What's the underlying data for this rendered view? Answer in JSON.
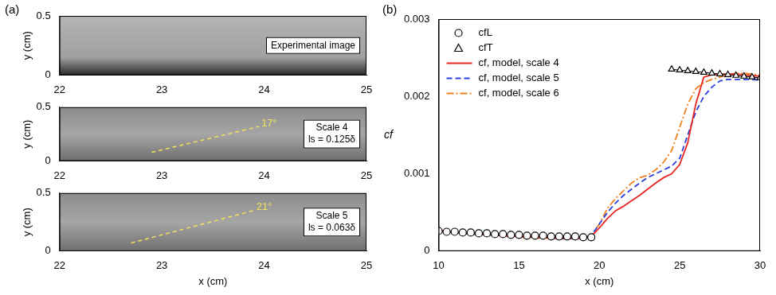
{
  "chart_data": [
    {
      "type": "image",
      "panel_label": "(a)",
      "y_label": "y (cm)",
      "xlim": [
        22,
        25
      ],
      "xticks": [
        22,
        23,
        24,
        25
      ],
      "ylim": [
        0,
        0.5
      ],
      "yticks": [
        0,
        0.5
      ],
      "text_box": [
        "Experimental image"
      ]
    },
    {
      "type": "image",
      "y_label": "y (cm)",
      "xlim": [
        22,
        25
      ],
      "xticks": [
        22,
        23,
        24,
        25
      ],
      "ylim": [
        0,
        0.5
      ],
      "yticks": [
        0,
        0.5
      ],
      "text_box": [
        "Scale 4",
        "ls = 0.125δ"
      ],
      "angle_lines": [
        {
          "x": [
            22.9,
            23.95
          ],
          "y": [
            0.08,
            0.32
          ],
          "label": "17°",
          "color": "#f2e35a"
        }
      ]
    },
    {
      "type": "image",
      "x_label": "x (cm)",
      "y_label": "y (cm)",
      "xlim": [
        22,
        25
      ],
      "xticks": [
        22,
        23,
        24,
        25
      ],
      "ylim": [
        0,
        0.5
      ],
      "yticks": [
        0,
        0.5
      ],
      "text_box": [
        "Scale 5",
        "ls = 0.063δ"
      ],
      "angle_lines": [
        {
          "x": [
            22.7,
            23.9
          ],
          "y": [
            0.07,
            0.35
          ],
          "label": "21°",
          "color": "#f2e35a"
        }
      ]
    },
    {
      "type": "line",
      "panel_label": "(b)",
      "x_label": "x (cm)",
      "y_label": "cf",
      "xlim": [
        10,
        30
      ],
      "xticks": [
        10,
        15,
        20,
        25,
        30
      ],
      "ylim": [
        0,
        0.003
      ],
      "yticks": [
        0,
        0.001,
        0.002,
        0.003
      ],
      "legend": "upper left",
      "series": [
        {
          "name": "cfL",
          "color": "#000000",
          "marker": "circle",
          "x": [
            10,
            10.5,
            11,
            11.5,
            12,
            12.5,
            13,
            13.5,
            14,
            14.5,
            15,
            15.5,
            16,
            16.5,
            17,
            17.5,
            18,
            18.5,
            19,
            19.5
          ],
          "values": [
            0.00026,
            0.00025,
            0.00025,
            0.00024,
            0.00024,
            0.00023,
            0.00023,
            0.00022,
            0.00022,
            0.00021,
            0.00021,
            0.0002,
            0.0002,
            0.0002,
            0.00019,
            0.00019,
            0.00019,
            0.00019,
            0.00018,
            0.00018
          ]
        },
        {
          "name": "cfT",
          "color": "#000000",
          "marker": "triangle",
          "line_style": "solid",
          "x": [
            24.5,
            25,
            25.5,
            26,
            26.5,
            27,
            27.5,
            28,
            28.5,
            29,
            29.5,
            30
          ],
          "values": [
            0.00235,
            0.00234,
            0.00233,
            0.00232,
            0.00231,
            0.0023,
            0.00229,
            0.00228,
            0.00227,
            0.00226,
            0.00225,
            0.00224
          ]
        },
        {
          "name": "cf, model, scale 4",
          "color": "#e8251f",
          "line_style": "solid",
          "x": [
            10,
            11,
            12,
            13,
            14,
            15,
            16,
            17,
            18,
            19,
            19.5,
            20,
            20.5,
            21,
            21.5,
            22,
            22.5,
            23,
            23.5,
            24,
            24.5,
            25,
            25.5,
            26,
            26.5,
            27,
            27.5,
            28,
            28.5,
            29,
            29.5,
            30
          ],
          "values": [
            0.00027,
            0.00025,
            0.00023,
            0.00021,
            0.0002,
            0.00019,
            0.00018,
            0.00017,
            0.00017,
            0.00017,
            0.00019,
            0.0003,
            0.00042,
            0.00052,
            0.00058,
            0.00065,
            0.00072,
            0.0008,
            0.00088,
            0.00095,
            0.001,
            0.00112,
            0.0014,
            0.0019,
            0.00225,
            0.00228,
            0.00229,
            0.00229,
            0.00229,
            0.00228,
            0.00227,
            0.00226
          ]
        },
        {
          "name": "cf, model, scale 5",
          "color": "#2b3fe0",
          "line_style": "dashed",
          "x": [
            10,
            11,
            12,
            13,
            14,
            15,
            16,
            17,
            18,
            19,
            19.5,
            20,
            20.5,
            21,
            21.5,
            22,
            22.5,
            23,
            23.5,
            24,
            24.5,
            25,
            25.5,
            26,
            26.5,
            27,
            27.5,
            28,
            28.5,
            29,
            29.5,
            30
          ],
          "values": [
            0.00026,
            0.00024,
            0.00022,
            0.00021,
            0.0002,
            0.00019,
            0.00018,
            0.00017,
            0.00016,
            0.00017,
            0.0002,
            0.00035,
            0.0005,
            0.00062,
            0.00072,
            0.0008,
            0.00088,
            0.00095,
            0.001,
            0.00105,
            0.0011,
            0.0012,
            0.0015,
            0.0018,
            0.002,
            0.00212,
            0.0022,
            0.00222,
            0.00222,
            0.00222,
            0.00222,
            0.00221
          ]
        },
        {
          "name": "cf, model, scale 6",
          "color": "#f07f1e",
          "line_style": "dashdot",
          "x": [
            10,
            11,
            12,
            13,
            14,
            15,
            16,
            17,
            18,
            19,
            19.5,
            20,
            20.5,
            21,
            21.5,
            22,
            22.5,
            23,
            23.5,
            24,
            24.5,
            25,
            25.5,
            26,
            26.5,
            27,
            27.5,
            28,
            28.5,
            29,
            29.5,
            30
          ],
          "values": [
            0.00027,
            0.00025,
            0.00022,
            0.00021,
            0.0002,
            0.00018,
            0.00017,
            0.00017,
            0.00016,
            0.00017,
            0.0002,
            0.00035,
            0.00055,
            0.00068,
            0.00078,
            0.00088,
            0.00095,
            0.00098,
            0.00105,
            0.00115,
            0.0013,
            0.0016,
            0.0019,
            0.0021,
            0.00218,
            0.00222,
            0.00225,
            0.00228,
            0.0023,
            0.0023,
            0.00229,
            0.00228
          ]
        }
      ]
    }
  ]
}
